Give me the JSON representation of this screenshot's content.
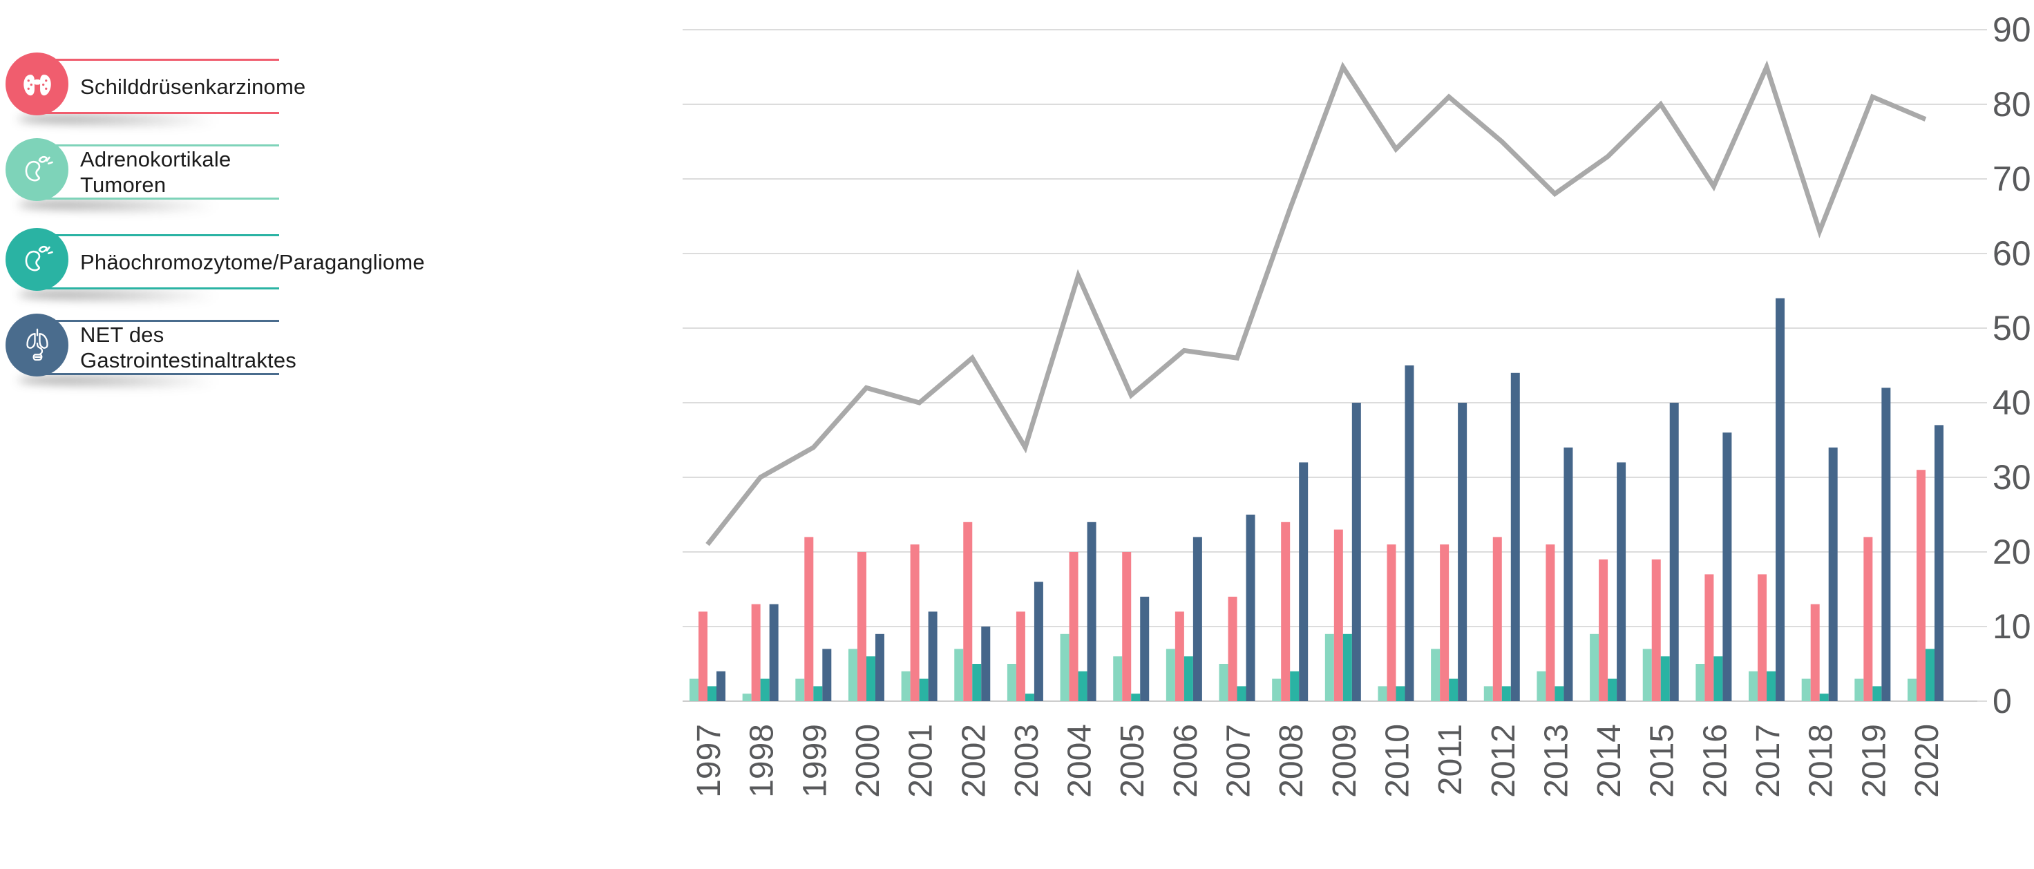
{
  "legend": {
    "items": [
      {
        "label": "Schilddrüsenkarzinome",
        "icon": "thyroid-icon",
        "color": "#f05d6e"
      },
      {
        "label": "Adrenokortikale Tumoren",
        "icon": "adrenal-gland-icon",
        "color": "#7ed3b9"
      },
      {
        "label": "Phäochromozytome/Paragangliome",
        "icon": "adrenal-gland-icon",
        "color": "#2ab3a3"
      },
      {
        "label": "NET des Gastrointestinaltraktes",
        "icon": "gi-tract-icon",
        "color": "#4a6c8d"
      }
    ]
  },
  "axes": {
    "y_ticks": [
      "0",
      "10",
      "20",
      "30",
      "40",
      "50",
      "60",
      "70",
      "80",
      "90"
    ],
    "x_ticks": [
      "1997",
      "1998",
      "1999",
      "2000",
      "2001",
      "2002",
      "2003",
      "2004",
      "2005",
      "2006",
      "2007",
      "2008",
      "2009",
      "2010",
      "2011",
      "2012",
      "2013",
      "2014",
      "2015",
      "2016",
      "2017",
      "2018",
      "2019",
      "2020"
    ]
  },
  "chart_data": {
    "type": "bar+line",
    "title": "",
    "xlabel": "",
    "ylabel": "",
    "ylim": [
      0,
      90
    ],
    "yticks": [
      0,
      10,
      20,
      30,
      40,
      50,
      60,
      70,
      80,
      90
    ],
    "grid": true,
    "legend_position": "left",
    "categories": [
      1997,
      1998,
      1999,
      2000,
      2001,
      2002,
      2003,
      2004,
      2005,
      2006,
      2007,
      2008,
      2009,
      2010,
      2011,
      2012,
      2013,
      2014,
      2015,
      2016,
      2017,
      2018,
      2019,
      2020
    ],
    "bar_group_order": [
      "adrenokortikale-tumoren",
      "schilddruesenkarzinome",
      "phaeochromozytome-paragangliome",
      "net-des-gastrointestinaltraktes"
    ],
    "series": [
      {
        "key": "adrenokortikale-tumoren",
        "name": "Adrenokortikale Tumoren",
        "type": "bar",
        "color": "#87d7c0",
        "values": [
          3,
          1,
          3,
          7,
          4,
          7,
          5,
          9,
          6,
          7,
          5,
          3,
          9,
          2,
          7,
          2,
          4,
          9,
          7,
          5,
          4,
          3,
          3,
          3
        ]
      },
      {
        "key": "schilddruesenkarzinome",
        "name": "Schilddrüsenkarzinome",
        "type": "bar",
        "color": "#f57f8a",
        "values": [
          12,
          13,
          22,
          20,
          21,
          24,
          12,
          20,
          20,
          12,
          14,
          24,
          23,
          21,
          21,
          22,
          21,
          19,
          19,
          17,
          17,
          13,
          22,
          31
        ]
      },
      {
        "key": "phaeochromozytome-paragangliome",
        "name": "Phäochromozytome/Paragangliome",
        "type": "bar",
        "color": "#2ab3a3",
        "values": [
          2,
          3,
          2,
          6,
          3,
          5,
          1,
          4,
          1,
          6,
          2,
          4,
          9,
          2,
          3,
          2,
          2,
          3,
          6,
          6,
          4,
          1,
          2,
          7
        ]
      },
      {
        "key": "net-des-gastrointestinaltraktes",
        "name": "NET des Gastrointestinaltraktes",
        "type": "bar",
        "color": "#45668a",
        "values": [
          4,
          13,
          7,
          9,
          12,
          10,
          16,
          24,
          14,
          22,
          25,
          32,
          40,
          45,
          40,
          44,
          34,
          32,
          40,
          36,
          54,
          34,
          42,
          37
        ]
      },
      {
        "key": "trend-line",
        "name": "",
        "type": "line",
        "color": "#a9a9a9",
        "values": [
          21,
          30,
          34,
          42,
          40,
          46,
          34,
          57,
          41,
          47,
          46,
          66,
          85,
          74,
          81,
          75,
          68,
          73,
          80,
          69,
          85,
          63,
          81,
          78
        ]
      }
    ],
    "colors": {
      "gridline": "#dcdcdc",
      "baseline": "#cccccc",
      "axis_text": "#58595b"
    }
  }
}
